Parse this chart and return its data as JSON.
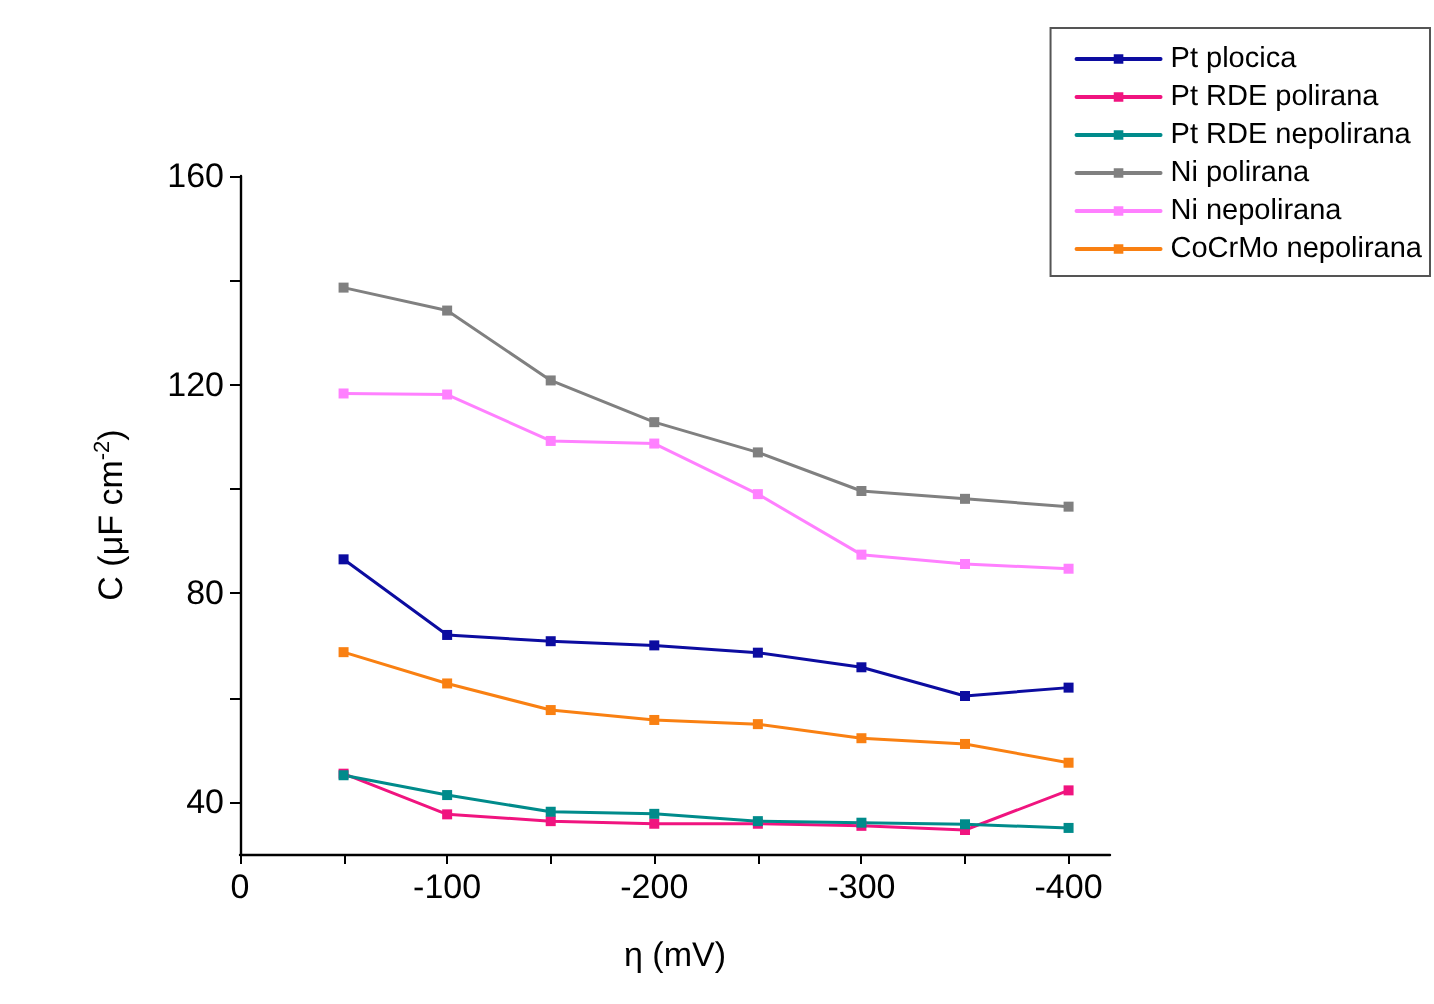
{
  "chart_data": {
    "type": "line",
    "xlabel": "η (mV)",
    "ylabel": "C (μF cm$^{-2}$)",
    "x": [
      -50,
      -100,
      -150,
      -200,
      -250,
      -300,
      -350,
      -400
    ],
    "xlim": [
      0,
      -420
    ],
    "ylim": [
      30,
      160
    ],
    "xticks": [
      0,
      {
        "value": -50,
        "label": null
      },
      -100,
      {
        "value": -150,
        "label": null
      },
      -200,
      {
        "value": -250,
        "label": null
      },
      -300,
      {
        "value": -350,
        "label": null
      },
      -400
    ],
    "yticks": [
      40,
      {
        "value": 60,
        "label": null
      },
      80,
      {
        "value": 100,
        "label": null
      },
      120,
      {
        "value": 140,
        "label": null
      },
      160
    ],
    "grid": false,
    "legend": "top right",
    "marker": "square",
    "line_style": "solid",
    "series": [
      {
        "name": "Pt plocica",
        "color": "#0c0ca0",
        "values": [
          86.5,
          72.0,
          70.8,
          70.0,
          68.6,
          65.8,
          60.3,
          61.9
        ]
      },
      {
        "name": "Pt RDE polirana",
        "color": "#f0147f",
        "values": [
          45.4,
          37.6,
          36.3,
          35.8,
          35.8,
          35.4,
          34.6,
          42.2
        ]
      },
      {
        "name": "Pt RDE nepolirana",
        "color": "#008b8b",
        "values": [
          45.1,
          41.3,
          38.1,
          37.7,
          36.3,
          36.0,
          35.7,
          35.0
        ]
      },
      {
        "name": "Ni polirana",
        "color": "#808080",
        "values": [
          138.6,
          134.2,
          120.8,
          112.8,
          107.0,
          99.6,
          98.1,
          96.6
        ]
      },
      {
        "name": "Ni nepolirana",
        "color": "#ff80ff",
        "values": [
          118.3,
          118.1,
          109.2,
          108.7,
          99.0,
          87.4,
          85.6,
          84.7
        ]
      },
      {
        "name": "CoCrMo nepolirana",
        "color": "#f98012",
        "values": [
          68.7,
          62.7,
          57.6,
          55.7,
          54.9,
          52.2,
          51.1,
          47.5
        ]
      }
    ]
  }
}
